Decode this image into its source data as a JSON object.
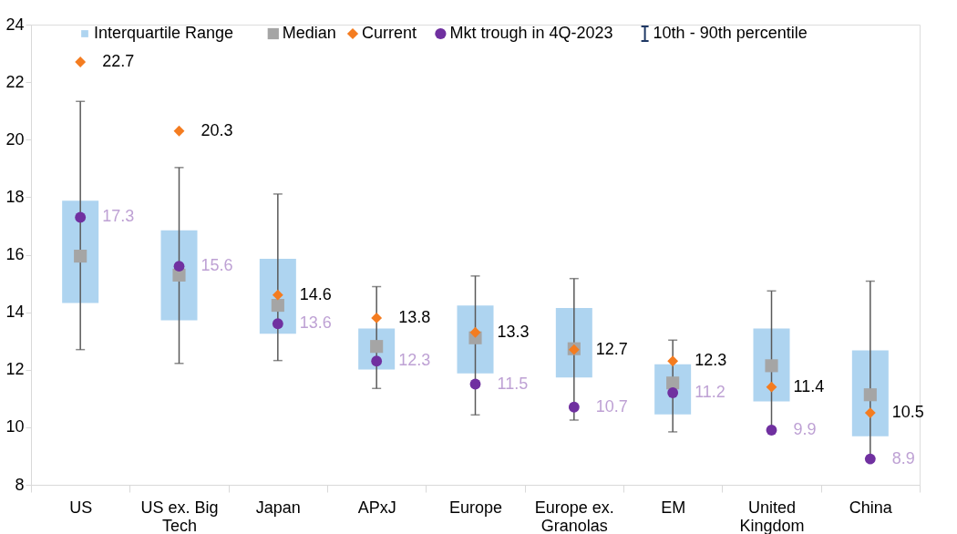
{
  "chart_data": {
    "type": "bar",
    "categories": [
      "US",
      "US ex. Big Tech",
      "Japan",
      "APxJ",
      "Europe",
      "Europe ex. Granolas",
      "EM",
      "United Kingdom",
      "China"
    ],
    "ylim": [
      8,
      24
    ],
    "yticks": [
      8,
      10,
      12,
      14,
      16,
      18,
      20,
      22,
      24
    ],
    "grid": false,
    "legend": "top",
    "annotations": [
      "10th - 90th percentile"
    ],
    "series": [
      {
        "name": "Interquartile Range",
        "color": "#aed4f0",
        "base": [
          14.32,
          13.72,
          13.25,
          12.01,
          11.87,
          11.73,
          10.45,
          10.9,
          9.69
        ],
        "values": [
          3.56,
          3.13,
          2.61,
          1.42,
          2.36,
          2.42,
          1.74,
          2.53,
          2.98
        ]
      },
      {
        "name": "Median",
        "type": "scatter",
        "marker": "square",
        "color": "#a5a5a5",
        "values": [
          15.95,
          15.29,
          14.24,
          12.81,
          13.11,
          12.73,
          11.54,
          12.14,
          11.13
        ]
      },
      {
        "name": "Current",
        "type": "scatter",
        "marker": "diamond",
        "color": "#f47c20",
        "values": [
          22.7,
          20.3,
          14.6,
          13.8,
          13.3,
          12.7,
          12.3,
          11.4,
          10.5
        ],
        "data_labels": true
      },
      {
        "name": "Mkt trough in 4Q-2023",
        "type": "scatter",
        "marker": "circle",
        "color": "#7030a0",
        "values": [
          17.3,
          15.6,
          13.6,
          12.3,
          11.5,
          10.7,
          11.2,
          9.9,
          8.9
        ],
        "data_labels": true,
        "errors": [
          [
            12.7,
            21.33
          ],
          [
            12.22,
            19.03
          ],
          [
            12.32,
            18.11
          ],
          [
            11.35,
            14.89
          ],
          [
            10.43,
            15.26
          ],
          [
            10.25,
            15.17
          ],
          [
            9.84,
            13.03
          ],
          [
            9.9,
            14.74
          ],
          [
            8.9,
            15.08
          ]
        ]
      }
    ]
  }
}
